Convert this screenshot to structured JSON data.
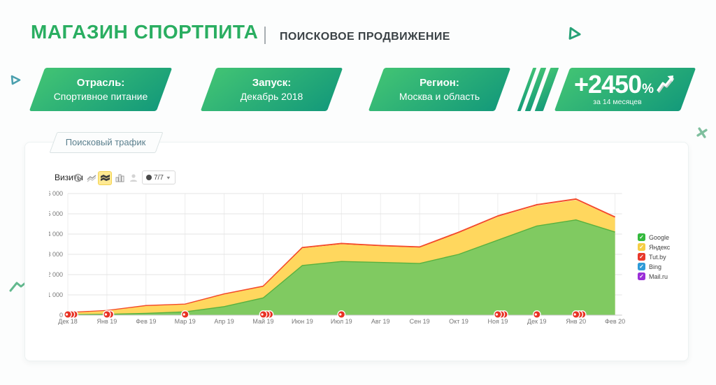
{
  "header": {
    "title": "МАГАЗИН СПОРТПИТА",
    "subtitle": "ПОИСКОВОЕ ПРОДВИЖЕНИЕ"
  },
  "badges": [
    {
      "label": "Отрасль:",
      "value": "Спортивное питание"
    },
    {
      "label": "Запуск:",
      "value": "Декабрь 2018"
    },
    {
      "label": "Регион:",
      "value": "Москва и область"
    }
  ],
  "kpi": {
    "number": "+2450",
    "percent": "%",
    "caption": "за 14 месяцев"
  },
  "card": {
    "tab_label": "Поисковый трафик"
  },
  "toolbar": {
    "metric_label": "Визиты",
    "icons": [
      "pie-chart-icon",
      "line-chart-icon",
      "stacked-area-icon",
      "bar-chart-icon",
      "map-pin-icon"
    ],
    "selected_icon": "stacked-area-icon",
    "period_label": "7/7"
  },
  "legend": [
    {
      "name": "Google",
      "color": "#34b93d"
    },
    {
      "name": "Яндекс",
      "color": "#f5ce45"
    },
    {
      "name": "Tut.by",
      "color": "#e8392c"
    },
    {
      "name": "Bing",
      "color": "#2f9bd8"
    },
    {
      "name": "Mail.ru",
      "color": "#9b2fd8"
    }
  ],
  "chart_data": {
    "type": "area",
    "stacked": true,
    "title": "Поисковый трафик",
    "ylabel": "Визиты",
    "ylim": [
      0,
      6000
    ],
    "yticks": [
      0,
      1000,
      2000,
      3000,
      4000,
      5000,
      6000
    ],
    "ytick_labels": [
      "0",
      "1 000",
      "2 000",
      "3 000",
      "4 000",
      "5 000",
      "6 000"
    ],
    "grid": true,
    "legend_position": "right",
    "x": [
      "Дек 18",
      "Янв 19",
      "Фев 19",
      "Мар 19",
      "Апр 19",
      "Май 19",
      "Июн 19",
      "Июл 19",
      "Авг 19",
      "Сен 19",
      "Окт 19",
      "Ноя 19",
      "Дек 19",
      "Янв 20",
      "Фев 20"
    ],
    "series": [
      {
        "name": "Google",
        "color": "#80ca61",
        "stroke": "#58b13f",
        "values": [
          20,
          40,
          90,
          160,
          420,
          850,
          2450,
          2650,
          2600,
          2550,
          3000,
          3700,
          4400,
          4700,
          4100
        ]
      },
      {
        "name": "Яндекс",
        "color": "#ffd75e",
        "stroke": "#f6b73c",
        "values": [
          90,
          170,
          360,
          360,
          600,
          550,
          850,
          850,
          800,
          780,
          1050,
          1150,
          1000,
          980,
          700
        ]
      },
      {
        "name": "Tut.by",
        "color": "#f44b2a",
        "stroke": "#f44b2a",
        "values": [
          5,
          5,
          8,
          8,
          10,
          12,
          18,
          18,
          16,
          16,
          20,
          22,
          25,
          25,
          20
        ]
      },
      {
        "name": "Bing",
        "color": "#2f9bd8",
        "stroke": "#2f9bd8",
        "values": [
          3,
          3,
          4,
          4,
          5,
          6,
          9,
          9,
          8,
          8,
          10,
          11,
          13,
          13,
          10
        ]
      },
      {
        "name": "Mail.ru",
        "color": "#9b2fd8",
        "stroke": "#9b2fd8",
        "values": [
          2,
          2,
          3,
          3,
          4,
          5,
          7,
          7,
          6,
          6,
          8,
          9,
          10,
          10,
          8
        ]
      }
    ],
    "annotations": [
      {
        "x": "Дек 18",
        "count": 3
      },
      {
        "x": "Янв 19",
        "count": 2
      },
      {
        "x": "Мар 19",
        "count": 1
      },
      {
        "x": "Май 19",
        "count": 3
      },
      {
        "x": "Июл 19",
        "count": 1
      },
      {
        "x": "Ноя 19",
        "count": 3
      },
      {
        "x": "Дек 19",
        "count": 1
      },
      {
        "x": "Янв 20",
        "count": 3
      }
    ],
    "marker_color": "#e83224"
  }
}
